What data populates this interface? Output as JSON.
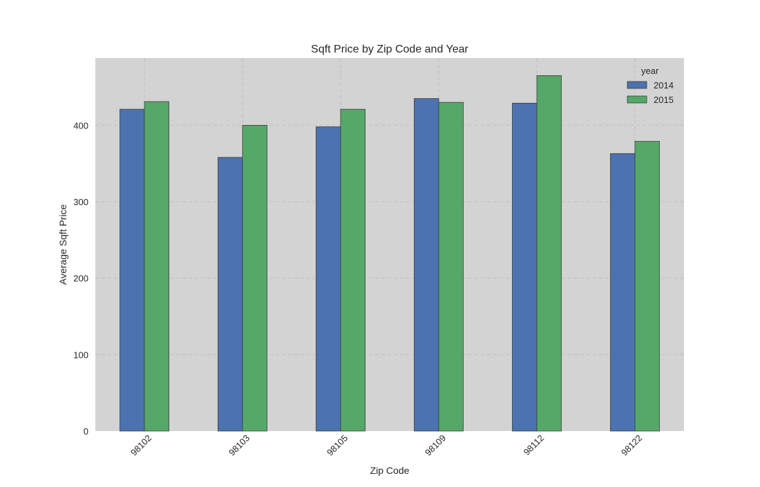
{
  "chart_data": {
    "type": "bar",
    "title": "Sqft Price by Zip Code and Year",
    "xlabel": "Zip Code",
    "ylabel": "Average Sqft Price",
    "categories": [
      "98102",
      "98103",
      "98105",
      "98109",
      "98112",
      "98122"
    ],
    "series": [
      {
        "name": "2014",
        "values": [
          421,
          358,
          398,
          435,
          429,
          363
        ],
        "color": "#4c72b0"
      },
      {
        "name": "2015",
        "values": [
          431,
          400,
          421,
          430,
          465,
          379
        ],
        "color": "#55a868"
      }
    ],
    "ylim": [
      0,
      488
    ],
    "yticks": [
      0,
      100,
      200,
      300,
      400
    ],
    "legend": {
      "title": "year",
      "position": "top-right"
    },
    "grid": true,
    "plot_background": "#d3d3d3"
  }
}
